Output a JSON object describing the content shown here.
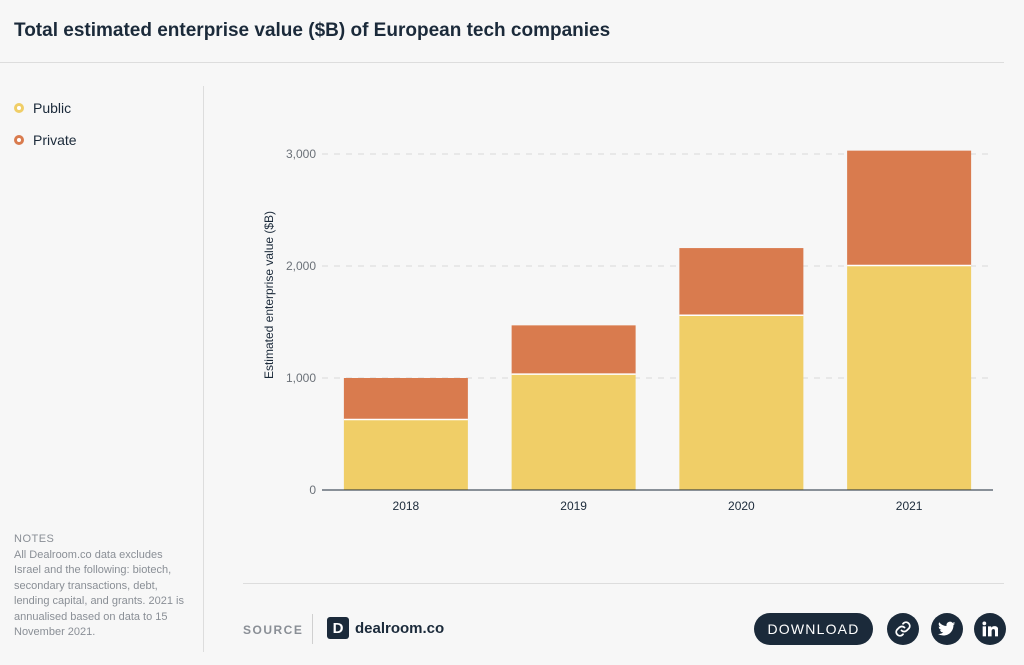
{
  "title": "Total estimated enterprise value ($B) of European tech companies",
  "legend": [
    {
      "label": "Public",
      "color": "#f0ce67"
    },
    {
      "label": "Private",
      "color": "#d97b4e"
    }
  ],
  "notes": {
    "heading": "NOTES",
    "text": "All Dealroom.co data excludes Israel and the following: biotech, secondary transactions, debt, lending capital, and grants. 2021 is annualised based on data to 15 November 2021."
  },
  "footer": {
    "source_label": "SOURCE",
    "logo_text": "dealroom.co",
    "logo_mark": "D",
    "download_label": "DOWNLOAD",
    "icons": [
      "link-icon",
      "twitter-icon",
      "linkedin-icon"
    ]
  },
  "chart_data": {
    "type": "bar",
    "stacked": true,
    "title": "Total estimated enterprise value ($B) of European tech companies",
    "ylabel": "Estimated enterprise value ($B)",
    "xlabel": "",
    "categories": [
      "2018",
      "2019",
      "2020",
      "2021"
    ],
    "series": [
      {
        "name": "Public",
        "color": "#f0ce67",
        "values": [
          630,
          1035,
          1560,
          2005
        ]
      },
      {
        "name": "Private",
        "color": "#d97b4e",
        "values": [
          370,
          435,
          600,
          1025
        ]
      }
    ],
    "ylim": [
      0,
      3000
    ],
    "yticks": [
      0,
      1000,
      2000,
      3000
    ],
    "ytick_labels": [
      "0",
      "1,000",
      "2,000",
      "3,000"
    ],
    "grid": true,
    "legend_position": "top-left"
  }
}
